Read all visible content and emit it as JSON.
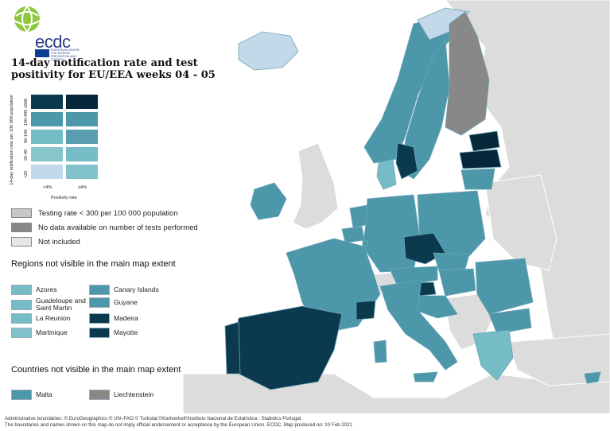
{
  "colors": {
    "sea": "#ffffff",
    "land_non_eu": "#dcdcdc",
    "border": "#5b8da0",
    "lt4_lt25": "#c3d9ea",
    "lt4_25_49": "#87c5cd",
    "lt4_50_149": "#76bcc6",
    "lt4_150_499": "#4d97ab",
    "lt4_ge500": "#0b3a4f",
    "ge4_lt25": "#82c2ca",
    "ge4_25_49": "#76bcc6",
    "ge4_50_149": "#5a9db0",
    "ge4_150_499": "#4d97ab",
    "ge4_ge500": "#06283a",
    "testing_low": "#c7c7c7",
    "no_data": "#888888",
    "not_included": "#e6e6e6"
  },
  "logo": {
    "text": "ecdc",
    "tagline": "EUROPEAN CENTRE FOR DISEASE PREVENTION AND CONTROL",
    "icon": "globe-icon"
  },
  "title": "14-day notification rate and test positivity for EU/EEA weeks 04 - 05",
  "matrix": {
    "y_axis_label": "14-day notification rate per 100 000 population",
    "y_ticks": [
      "≥500",
      "150-499",
      "50-149",
      "25-49",
      "<25"
    ],
    "x_ticks": [
      "<4%",
      "≥4%"
    ],
    "x_axis_label": "Positivity rate",
    "cells": [
      [
        "#0b3a4f",
        "#06283a"
      ],
      [
        "#4d97ab",
        "#4d97ab"
      ],
      [
        "#76bcc6",
        "#5a9db0"
      ],
      [
        "#87c5cd",
        "#76bcc6"
      ],
      [
        "#c3d9ea",
        "#82c2ca"
      ]
    ]
  },
  "legend": [
    {
      "label": "Testing rate < 300 per 100 000 population",
      "color": "#c7c7c7"
    },
    {
      "label": "No data available on number of tests performed",
      "color": "#888888"
    },
    {
      "label": "Not included",
      "color": "#e6e6e6"
    }
  ],
  "regions_title": "Regions not visible in the main map extent",
  "regions": [
    {
      "label": "Azores",
      "color": "#76bcc6"
    },
    {
      "label": "Guadeloupe and Saint Martin",
      "color": "#76bcc6"
    },
    {
      "label": "La Reunion",
      "color": "#76bcc6"
    },
    {
      "label": "Martinique",
      "color": "#82c2ca"
    },
    {
      "label": "Canary Islands",
      "color": "#4d97ab"
    },
    {
      "label": "Guyane",
      "color": "#4d97ab"
    },
    {
      "label": "Madeira",
      "color": "#0b3a4f"
    },
    {
      "label": "Mayotte",
      "color": "#0b3a4f"
    }
  ],
  "countries_title": "Countries not visible in the main map extent",
  "countries": [
    {
      "label": "Malta",
      "color": "#4d97ab"
    },
    {
      "label": "Liechtenstein",
      "color": "#888888"
    }
  ],
  "footer": {
    "line1": "Administrative boundaries: © EuroGeographics © UN–FAO © Turkstat.©Kartverket©Instituto Nacional de Estatística - Statistics Portugal.",
    "line2": "The boundaries and names shown on this map do not imply official endorsement or acceptance by the European Union. ECDC. Map produced on: 10 Feb 2021"
  }
}
